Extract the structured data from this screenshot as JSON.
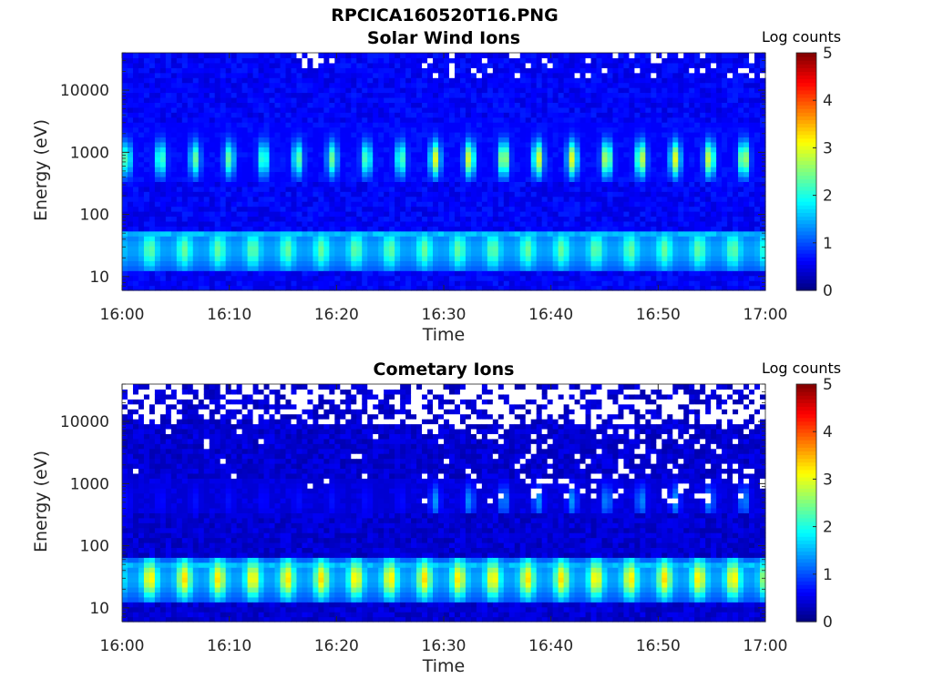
{
  "figure": {
    "title": "RPCICA160520T16.PNG"
  },
  "chart_data": [
    {
      "type": "heatmap",
      "title": "Solar Wind Ions",
      "xlabel": "Time",
      "ylabel": "Energy (eV)",
      "x_ticks": [
        "16:00",
        "16:10",
        "16:20",
        "16:30",
        "16:40",
        "16:50",
        "17:00"
      ],
      "x_range_minutes": [
        0,
        60
      ],
      "y_scale": "log",
      "y_ticks": [
        "10",
        "100",
        "1000",
        "10000"
      ],
      "y_range_eV": [
        6,
        40000
      ],
      "colorbar": {
        "label": "Log counts",
        "ticks": [
          "0",
          "1",
          "2",
          "3",
          "4",
          "5"
        ],
        "range": [
          0,
          5
        ],
        "colormap": "jet"
      },
      "features": {
        "background_log_counts": 0.6,
        "low_energy_band_eV": [
          15,
          50
        ],
        "low_energy_band_peak_log_counts": 1.9,
        "low_energy_pulse_period_min": 3.2,
        "high_energy_band_eV": [
          400,
          2000
        ],
        "high_energy_band_peak_log_counts": 3.0,
        "high_energy_pulse_period_min": 3.2,
        "missing_data_sparse_after_min": 28
      }
    },
    {
      "type": "heatmap",
      "title": "Cometary Ions",
      "xlabel": "Time",
      "ylabel": "Energy (eV)",
      "x_ticks": [
        "16:00",
        "16:10",
        "16:20",
        "16:30",
        "16:40",
        "16:50",
        "17:00"
      ],
      "x_range_minutes": [
        0,
        60
      ],
      "y_scale": "log",
      "y_ticks": [
        "10",
        "100",
        "1000",
        "10000"
      ],
      "y_range_eV": [
        6,
        40000
      ],
      "colorbar": {
        "label": "Log counts",
        "ticks": [
          "0",
          "1",
          "2",
          "3",
          "4",
          "5"
        ],
        "range": [
          0,
          5
        ],
        "colormap": "jet"
      },
      "features": {
        "background_log_counts": 0.4,
        "low_energy_band_eV": [
          15,
          60
        ],
        "low_energy_band_peak_log_counts": 2.8,
        "low_energy_pulse_period_min": 3.2,
        "high_energy_band_eV": [
          400,
          900
        ],
        "high_energy_band_peak_log_counts": 1.6,
        "missing_data_dense_above_eV": 10000,
        "missing_data_scattered_after_min": 28
      }
    }
  ]
}
